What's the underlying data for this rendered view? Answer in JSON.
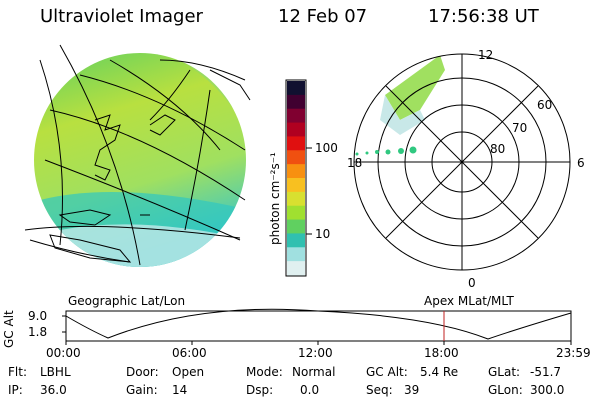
{
  "header": {
    "instrument": "Ultraviolet Imager",
    "date": "12 Feb 07",
    "time": "17:56:38 UT"
  },
  "colorbar": {
    "label": "photon cm⁻²s⁻¹",
    "ticks": [
      "100",
      "10"
    ],
    "colors": [
      "#101030",
      "#400030",
      "#800030",
      "#b00020",
      "#e01010",
      "#f05010",
      "#f89010",
      "#f8c020",
      "#d8e030",
      "#a0e030",
      "#60d060",
      "#30c0b0",
      "#a0e0e0",
      "#e0f0f0"
    ]
  },
  "left_panel": {
    "caption": "Geographic Lat/Lon",
    "disk_color": "#a8e060"
  },
  "right_panel": {
    "caption": "Apex MLat/MLT",
    "mlt_labels": [
      "12",
      "18",
      "6",
      "0"
    ],
    "lat_labels": [
      "60",
      "70",
      "80"
    ]
  },
  "orbit": {
    "ylabel": "GC Alt",
    "yticks": [
      "9.0",
      "1.8"
    ],
    "xticks": [
      "00:00",
      "06:00",
      "12:00",
      "18:00",
      "23:59"
    ]
  },
  "info": {
    "flt_label": "Flt:",
    "flt_value": "LBHL",
    "ip_label": "IP:",
    "ip_value": "36.0",
    "door_label": "Door:",
    "door_value": "Open",
    "gain_label": "Gain:",
    "gain_value": "14",
    "mode_label": "Mode:",
    "mode_value": "Normal",
    "dsp_label": "Dsp:",
    "dsp_value": "0.0",
    "gcalt_label": "GC Alt:",
    "gcalt_value": "5.4 Re",
    "seq_label": "Seq:",
    "seq_value": "39",
    "glat_label": "GLat:",
    "glat_value": "-51.7",
    "glon_label": "GLon:",
    "glon_value": "300.0"
  }
}
